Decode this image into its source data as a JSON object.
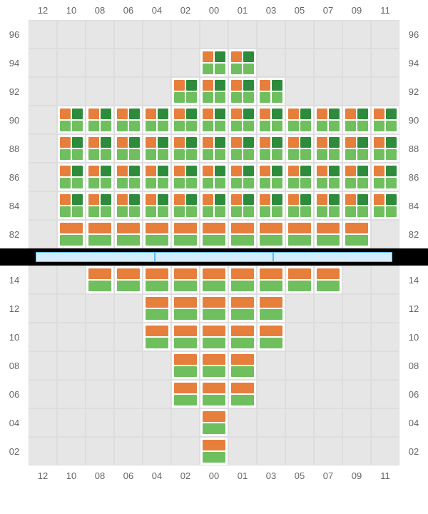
{
  "colors": {
    "orange": "#e67e3c",
    "light_green": "#6fbf5f",
    "dark_green": "#2e8b3c",
    "grid_bg": "#e6e6e6",
    "grid_border": "#dddddd",
    "divider_bg": "#000000",
    "divider_bar_fill": "#d4edfc",
    "divider_bar_border": "#5bb8ec",
    "label_color": "#666666"
  },
  "columns": [
    "12",
    "10",
    "08",
    "06",
    "04",
    "02",
    "00",
    "01",
    "03",
    "05",
    "07",
    "09",
    "11"
  ],
  "top": {
    "rows": [
      "96",
      "94",
      "92",
      "90",
      "88",
      "86",
      "84",
      "82"
    ],
    "cells": [
      [
        null,
        null,
        null,
        null,
        null,
        null,
        null,
        null,
        null,
        null,
        null,
        null,
        null
      ],
      [
        null,
        null,
        null,
        null,
        null,
        null,
        "g4",
        "g4",
        null,
        null,
        null,
        null,
        null
      ],
      [
        null,
        null,
        null,
        null,
        null,
        "g4",
        "g4",
        "g4",
        "g4",
        null,
        null,
        null,
        null
      ],
      [
        null,
        "g4",
        "g4",
        "g4",
        "g4",
        "g4",
        "g4",
        "g4",
        "g4",
        "g4",
        "g4",
        "g4",
        "g4"
      ],
      [
        null,
        "g4",
        "g4",
        "g4",
        "g4",
        "g4",
        "g4",
        "g4",
        "g4",
        "g4",
        "g4",
        "g4",
        "g4"
      ],
      [
        null,
        "g4",
        "g4",
        "g4",
        "g4",
        "g4",
        "g4",
        "g4",
        "g4",
        "g4",
        "g4",
        "g4",
        "g4"
      ],
      [
        null,
        "g4",
        "g4",
        "g4",
        "g4",
        "g4",
        "g4",
        "g4",
        "g4",
        "g4",
        "g4",
        "g4",
        "g4"
      ],
      [
        null,
        "gv",
        "gv",
        "gv",
        "gv",
        "gv",
        "gv",
        "gv",
        "gv",
        "gv",
        "gv",
        "gv",
        null
      ]
    ]
  },
  "divider": {
    "segments": 3
  },
  "bottom": {
    "rows": [
      "14",
      "12",
      "10",
      "08",
      "06",
      "04",
      "02"
    ],
    "cells": [
      [
        null,
        null,
        "gv",
        "gv",
        "gv",
        "gv",
        "gv",
        "gv",
        "gv",
        "gv",
        "gv",
        null,
        null
      ],
      [
        null,
        null,
        null,
        null,
        "gv",
        "gv",
        "gv",
        "gv",
        "gv",
        null,
        null,
        null,
        null
      ],
      [
        null,
        null,
        null,
        null,
        "gv",
        "gv",
        "gv",
        "gv",
        "gv",
        null,
        null,
        null,
        null
      ],
      [
        null,
        null,
        null,
        null,
        null,
        "gv",
        "gv",
        "gv",
        null,
        null,
        null,
        null,
        null
      ],
      [
        null,
        null,
        null,
        null,
        null,
        "gv",
        "gv",
        "gv",
        null,
        null,
        null,
        null,
        null
      ],
      [
        null,
        null,
        null,
        null,
        null,
        null,
        "gv",
        null,
        null,
        null,
        null,
        null,
        null
      ],
      [
        null,
        null,
        null,
        null,
        null,
        null,
        "gv",
        null,
        null,
        null,
        null,
        null,
        null
      ]
    ]
  }
}
